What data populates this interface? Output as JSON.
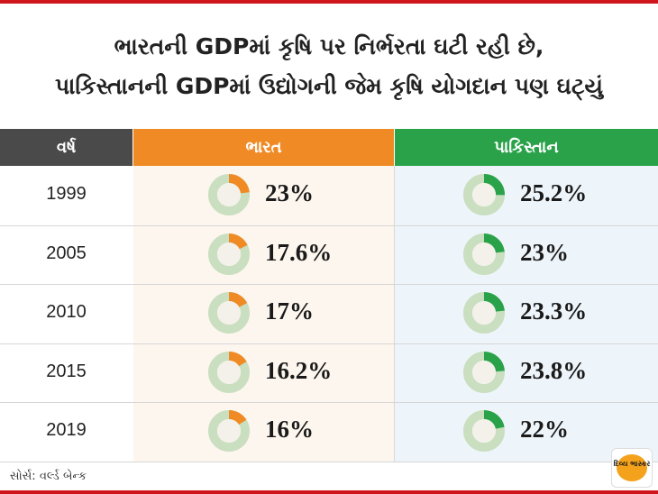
{
  "title_line1": "ભારતની GDPમાં કૃષિ પર નિર્ભરતા ઘટી રહી છે,",
  "title_line2": "પાકિસ્તાનની GDPમાં ઉદ્યોગની જેમ કૃષિ યોગદાન પણ ઘટ્યું",
  "headers": {
    "year": "વર્ષ",
    "india": "ભારત",
    "pakistan": "પાકિસ્તાન"
  },
  "source": "સોર્સ: વર્લ્ડ બેન્ક",
  "logo_text": "દિવ્ય ભાસ્કર",
  "colors": {
    "india": "#f08a24",
    "pakistan": "#2aa24a",
    "ring": "#c9dfc0",
    "inner": "#f4f1ea"
  },
  "chart_data": {
    "type": "table",
    "title": "ભારતની GDPમાં કૃષિ પર નિર્ભરતા ઘટી રહી છે, પાકિસ્તાનની GDPમાં ઉદ્યોગની જેમ કૃષિ યોગદાન પણ ઘટ્યું",
    "columns": [
      "વર્ષ",
      "ભારત",
      "પાકિસ્તાન"
    ],
    "categories": [
      "1999",
      "2005",
      "2010",
      "2015",
      "2019"
    ],
    "series": [
      {
        "name": "ભારત",
        "values": [
          23,
          17.6,
          17,
          16.2,
          16
        ],
        "labels": [
          "23%",
          "17.6%",
          "17%",
          "16.2%",
          "16%"
        ]
      },
      {
        "name": "પાકિસ્તાન",
        "values": [
          25.2,
          23,
          23.3,
          23.8,
          22
        ],
        "labels": [
          "25.2%",
          "23%",
          "23.3%",
          "23.8%",
          "22%"
        ]
      }
    ]
  }
}
